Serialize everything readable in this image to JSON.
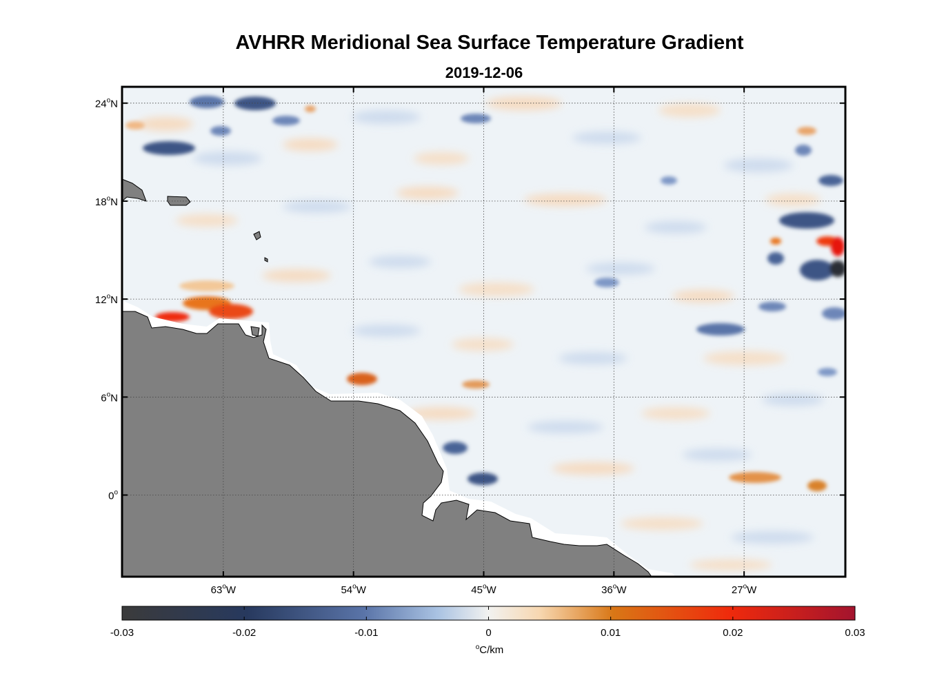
{
  "title": "AVHRR Meridional Sea Surface Temperature Gradient",
  "date": "2019-12-06",
  "map": {
    "lon_range": [
      -70,
      -20
    ],
    "lat_range": [
      -5,
      25
    ],
    "lat_ticks": [
      {
        "value": 24,
        "text": "24",
        "hemi": "N"
      },
      {
        "value": 18,
        "text": "18",
        "hemi": "N"
      },
      {
        "value": 12,
        "text": "12",
        "hemi": "N"
      },
      {
        "value": 6,
        "text": "6",
        "hemi": "N"
      },
      {
        "value": 0,
        "text": "0",
        "hemi": ""
      }
    ],
    "lon_ticks": [
      {
        "value": -63,
        "text": "63",
        "hemi": "W"
      },
      {
        "value": -54,
        "text": "54",
        "hemi": "W"
      },
      {
        "value": -45,
        "text": "45",
        "hemi": "W"
      },
      {
        "value": -36,
        "text": "36",
        "hemi": "W"
      },
      {
        "value": -27,
        "text": "27",
        "hemi": "W"
      }
    ],
    "degree_symbol": "o",
    "land_color": "#808080",
    "ocean_base_color": "#eef3f7"
  },
  "colorbar": {
    "min": -0.03,
    "max": 0.03,
    "tick_labels": [
      "-0.03",
      "-0.02",
      "-0.01",
      "0",
      "0.01",
      "0.02",
      "0.03"
    ],
    "units_degree": "o",
    "units_text": "C/km",
    "colors": [
      "#3b3b3b",
      "#27395e",
      "#5a74a8",
      "#a9c2e2",
      "#f2f2f0",
      "#f7d7b0",
      "#d97716",
      "#ef2a0c",
      "#a3142e"
    ]
  }
}
